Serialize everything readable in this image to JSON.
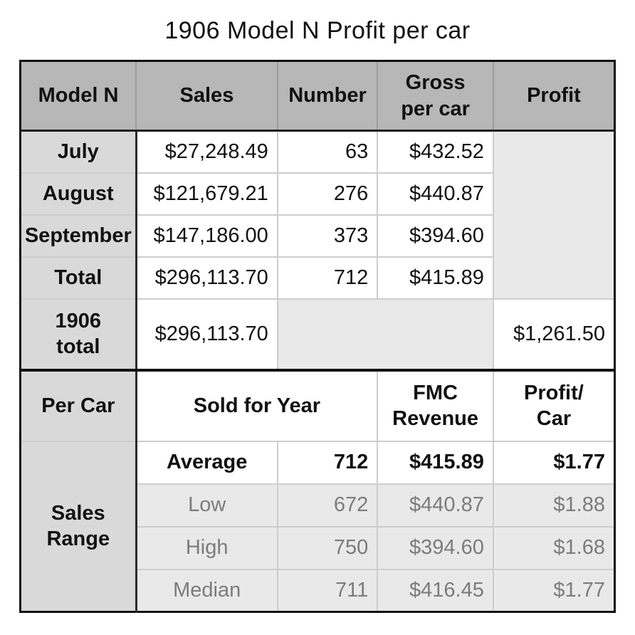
{
  "title": "1906 Model N Profit per car",
  "monthly": {
    "headers": {
      "col1": "Model N",
      "sales": "Sales",
      "number": "Number",
      "gross": "Gross\nper car",
      "profit": "Profit"
    },
    "rows": [
      {
        "label": "July",
        "sales": "$27,248.49",
        "number": "63",
        "gross": "$432.52"
      },
      {
        "label": "August",
        "sales": "$121,679.21",
        "number": "276",
        "gross": "$440.87"
      },
      {
        "label": "September",
        "sales": "$147,186.00",
        "number": "373",
        "gross": "$394.60"
      },
      {
        "label": "Total",
        "sales": "$296,113.70",
        "number": "712",
        "gross": "$415.89"
      }
    ],
    "year_total": {
      "label": "1906\ntotal",
      "sales": "$296,113.70",
      "profit": "$1,261.50"
    }
  },
  "per_car": {
    "headers": {
      "col1": "Per Car",
      "sold": "Sold for Year",
      "fmc": "FMC\nRevenue",
      "profit": "Profit/\nCar"
    },
    "range_label": "Sales\nRange",
    "rows": [
      {
        "label": "Average",
        "number": "712",
        "revenue": "$415.89",
        "profit": "$1.77"
      },
      {
        "label": "Low",
        "number": "672",
        "revenue": "$440.87",
        "profit": "$1.88"
      },
      {
        "label": "High",
        "number": "750",
        "revenue": "$394.60",
        "profit": "$1.68"
      },
      {
        "label": "Median",
        "number": "711",
        "revenue": "$416.45",
        "profit": "$1.77"
      }
    ]
  },
  "colors": {
    "header_bg": "#b7b7b7",
    "label_col_bg": "#d9d9d9",
    "muted_bg": "#e9e9e9",
    "muted_text": "#7c7c7c",
    "grid_light": "#cdcdcd",
    "grid_dark": "#111111"
  }
}
